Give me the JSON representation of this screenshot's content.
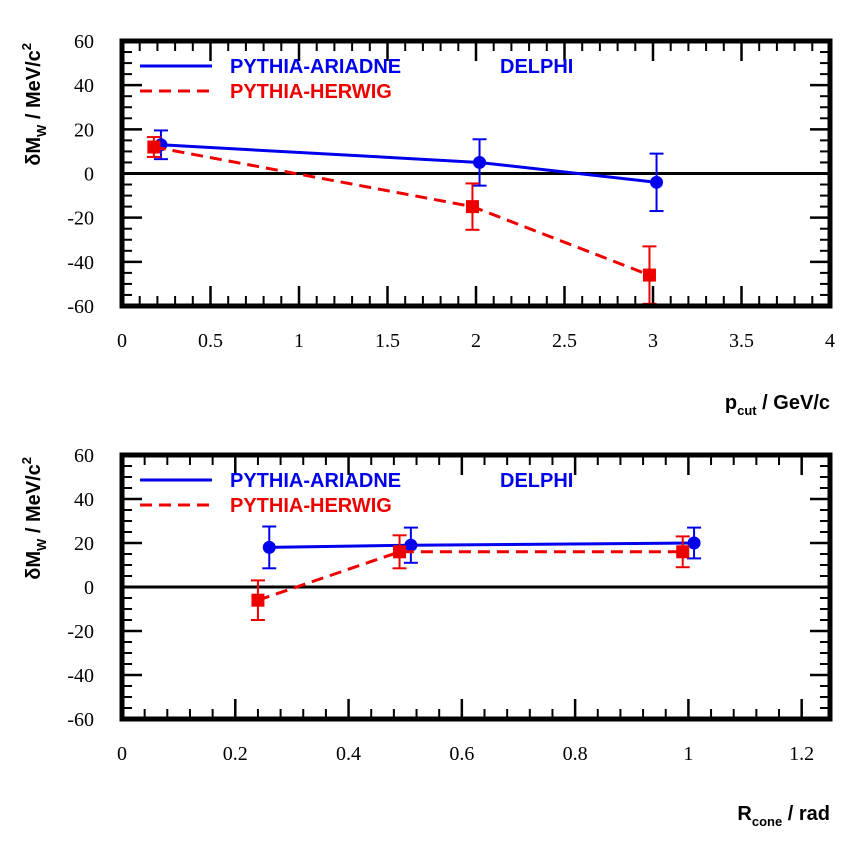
{
  "chart_data": [
    {
      "type": "line",
      "ylabel": "δM",
      "ylabel_sub": "W",
      "ylabel_rest": " / MeV/c",
      "ylabel_sup": "2",
      "xlabel": "p",
      "xlabel_sub": "cut",
      "xlabel_rest": " / GeV/c",
      "xlim": [
        0,
        4
      ],
      "ylim": [
        -60,
        60
      ],
      "xticks": [
        0,
        0.5,
        1,
        1.5,
        2,
        2.5,
        3,
        3.5,
        4
      ],
      "xtick_labels": [
        "0",
        "0.5",
        "1",
        "1.5",
        "2",
        "2.5",
        "3",
        "3.5",
        "4"
      ],
      "yticks": [
        -60,
        -40,
        -20,
        0,
        20,
        40,
        60
      ],
      "ytick_labels": [
        "-60",
        "-40",
        "-20",
        "0",
        "20",
        "40",
        "60"
      ],
      "annotation": "DELPHI",
      "series": [
        {
          "name": "PYTHIA-ARIADNE",
          "color": "#0000ee",
          "marker": "circle",
          "linestyle": "solid",
          "x": [
            0.22,
            2.02,
            3.02
          ],
          "y": [
            13,
            5,
            -4
          ],
          "err": [
            6.5,
            10.5,
            13
          ]
        },
        {
          "name": "PYTHIA-HERWIG",
          "color": "#ee0000",
          "marker": "square",
          "linestyle": "dashed",
          "x": [
            0.18,
            1.98,
            2.98
          ],
          "y": [
            12,
            -15,
            -46
          ],
          "err": [
            4.5,
            10.5,
            13
          ]
        }
      ]
    },
    {
      "type": "line",
      "ylabel": "δM",
      "ylabel_sub": "W",
      "ylabel_rest": " / MeV/c",
      "ylabel_sup": "2",
      "xlabel": "R",
      "xlabel_sub": "cone",
      "xlabel_rest": " / rad",
      "xlim": [
        0,
        1.25
      ],
      "ylim": [
        -60,
        60
      ],
      "xticks": [
        0,
        0.2,
        0.4,
        0.6,
        0.8,
        1,
        1.2
      ],
      "xtick_labels": [
        "0",
        "0.2",
        "0.4",
        "0.6",
        "0.8",
        "1",
        "1.2"
      ],
      "yticks": [
        -60,
        -40,
        -20,
        0,
        20,
        40,
        60
      ],
      "ytick_labels": [
        "-60",
        "-40",
        "-20",
        "0",
        "20",
        "40",
        "60"
      ],
      "annotation": "DELPHI",
      "series": [
        {
          "name": "PYTHIA-ARIADNE",
          "color": "#0000ee",
          "marker": "circle",
          "linestyle": "solid",
          "x": [
            0.26,
            0.51,
            1.01
          ],
          "y": [
            18,
            19,
            20
          ],
          "err": [
            9.5,
            8,
            7
          ]
        },
        {
          "name": "PYTHIA-HERWIG",
          "color": "#ee0000",
          "marker": "square",
          "linestyle": "dashed",
          "x": [
            0.24,
            0.49,
            0.99
          ],
          "y": [
            -6,
            16,
            16
          ],
          "err": [
            9,
            7.5,
            7
          ]
        }
      ]
    }
  ]
}
